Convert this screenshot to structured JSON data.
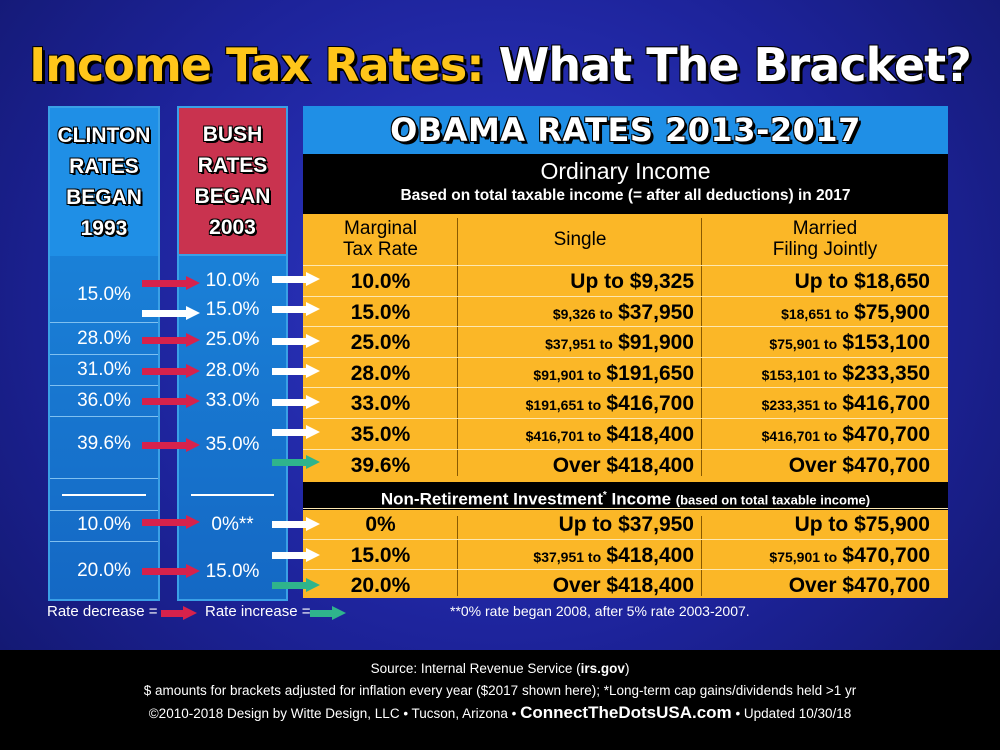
{
  "title": {
    "part1": "Income Tax Rates:",
    "part2": "What The Bracket?"
  },
  "clinton": {
    "header": "CLINTON\nRATES\nBEGAN\n1993",
    "rates": [
      "15.0%",
      "28.0%",
      "31.0%",
      "36.0%",
      "39.6%",
      "10.0%",
      "20.0%"
    ]
  },
  "bush": {
    "header": "BUSH\nRATES\nBEGAN\n2003",
    "rates": [
      "10.0%",
      "15.0%",
      "25.0%",
      "28.0%",
      "33.0%",
      "35.0%",
      "0%**",
      "15.0%"
    ]
  },
  "obama": {
    "header": "OBAMA RATES 2013-2017",
    "ordinary_title": "Ordinary Income",
    "ordinary_sub": "Based on total taxable income (= after all deductions) in 2017",
    "col_rate": "Marginal\nTax Rate",
    "col_single": "Single",
    "col_married": "Married\nFiling Jointly",
    "ordinary_rows": [
      {
        "rate": "10.0%",
        "single_pre": "",
        "single": "Up to $9,325",
        "married_pre": "",
        "married": "Up to $18,650"
      },
      {
        "rate": "15.0%",
        "single_pre": "$9,326 to",
        "single": "$37,950",
        "married_pre": "$18,651 to",
        "married": "$75,900"
      },
      {
        "rate": "25.0%",
        "single_pre": "$37,951 to",
        "single": "$91,900",
        "married_pre": "$75,901 to",
        "married": "$153,100"
      },
      {
        "rate": "28.0%",
        "single_pre": "$91,901 to",
        "single": "$191,650",
        "married_pre": "$153,101 to",
        "married": "$233,350"
      },
      {
        "rate": "33.0%",
        "single_pre": "$191,651 to",
        "single": "$416,700",
        "married_pre": "$233,351 to",
        "married": "$416,700"
      },
      {
        "rate": "35.0%",
        "single_pre": "$416,701 to",
        "single": "$418,400",
        "married_pre": "$416,701 to",
        "married": "$470,700"
      },
      {
        "rate": "39.6%",
        "single_pre": "",
        "single": "Over $418,400",
        "married_pre": "",
        "married": "Over $470,700"
      }
    ],
    "invest_title_a": "Non-Retirement Investment",
    "invest_title_star": "*",
    "invest_title_b": " Income",
    "invest_title_c": "(based on total taxable income)",
    "invest_rows": [
      {
        "rate": "0%",
        "single_pre": "",
        "single": "Up to $37,950",
        "married_pre": "",
        "married": "Up to $75,900"
      },
      {
        "rate": "15.0%",
        "single_pre": "$37,951 to",
        "single": "$418,400",
        "married_pre": "$75,901 to",
        "married": "$470,700"
      },
      {
        "rate": "20.0%",
        "single_pre": "",
        "single": "Over $418,400",
        "married_pre": "",
        "married": "Over $470,700"
      }
    ]
  },
  "legend": {
    "decrease": "Rate decrease =",
    "increase": "Rate increase ="
  },
  "footnote": "**0% rate began 2008, after 5% rate 2003-2007.",
  "footer": {
    "line1_a": "Source: Internal Revenue Service (",
    "line1_b": "irs.gov",
    "line1_c": ")",
    "line2": "$ amounts for brackets adjusted for inflation every year ($2017 shown here); *Long-term cap gains/dividends held >1 yr",
    "line3_a": "©2010-2018 Design by Witte Design, LLC • Tucson, Arizona •",
    "line3_site": "ConnectTheDotsUSA.com",
    "line3_b": "• Updated 10/30/18"
  },
  "colors": {
    "red_arrow": "#d6224c",
    "white_arrow": "#ffffff",
    "green_arrow": "#2fb48c",
    "table": "#fbb727"
  }
}
